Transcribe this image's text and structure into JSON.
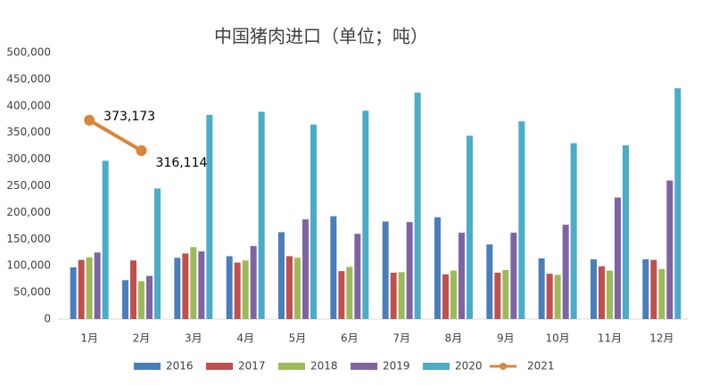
{
  "chart_data": {
    "type": "bar",
    "title": "中国猪肉进口（单位；吨）",
    "categories": [
      "1月",
      "2月",
      "3月",
      "4月",
      "5月",
      "6月",
      "7月",
      "8月",
      "9月",
      "10月",
      "11月",
      "12月"
    ],
    "series": [
      {
        "name": "2016",
        "color": "#4a7ebb",
        "values": [
          97000,
          73000,
          115000,
          118000,
          163000,
          193000,
          183000,
          191000,
          140000,
          114000,
          112000,
          112000
        ]
      },
      {
        "name": "2017",
        "color": "#c0504d",
        "values": [
          111000,
          110000,
          123000,
          106000,
          118000,
          90000,
          87000,
          84000,
          87000,
          85000,
          99000,
          111000
        ]
      },
      {
        "name": "2018",
        "color": "#9bbb59",
        "values": [
          116000,
          71000,
          135000,
          110000,
          115000,
          98000,
          88000,
          91000,
          92000,
          83000,
          91000,
          94000
        ]
      },
      {
        "name": "2019",
        "color": "#8064a2",
        "values": [
          125000,
          81000,
          127000,
          137000,
          187000,
          160000,
          182000,
          162000,
          162000,
          177000,
          228000,
          260000
        ]
      },
      {
        "name": "2020",
        "color": "#4bacc6",
        "values": [
          297000,
          245000,
          383000,
          389000,
          365000,
          391000,
          425000,
          344000,
          371000,
          330000,
          326000,
          433000
        ]
      },
      {
        "name": "2021",
        "type": "line",
        "color": "#d9853b",
        "values": [
          373173,
          316114,
          null,
          null,
          null,
          null,
          null,
          null,
          null,
          null,
          null,
          null
        ],
        "value_labels": [
          "373,173",
          "316,114",
          null,
          null,
          null,
          null,
          null,
          null,
          null,
          null,
          null,
          null
        ]
      }
    ],
    "ylim": [
      0,
      500000
    ],
    "yticks": [
      0,
      {
        "value": 50000,
        "label": "50,000"
      },
      {
        "value": 100000,
        "label": "100,000"
      },
      {
        "value": 150000,
        "label": "150,000"
      },
      {
        "value": 200000,
        "label": "200,000"
      },
      {
        "value": 250000,
        "label": "250,000"
      },
      {
        "value": 300000,
        "label": "300,000"
      },
      {
        "value": 350000,
        "label": "350,000"
      },
      {
        "value": 400000,
        "label": "400,000"
      },
      {
        "value": 450000,
        "label": "450,000"
      },
      {
        "value": 500000,
        "label": "500,000"
      }
    ],
    "grid": false,
    "legend": "bottom"
  }
}
